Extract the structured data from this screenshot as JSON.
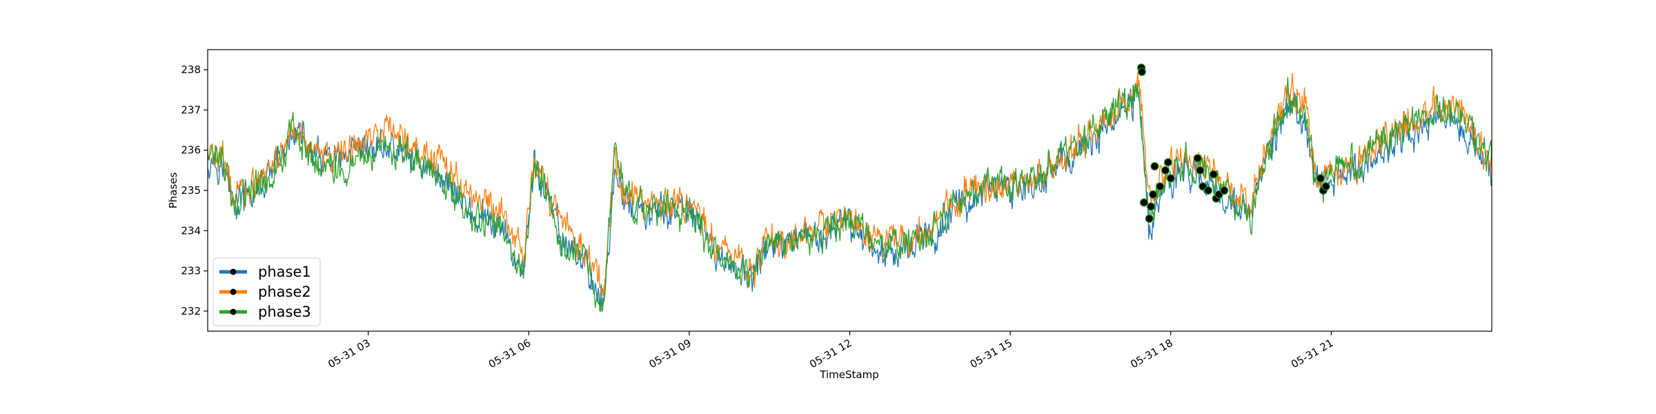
{
  "chart_data": {
    "type": "line",
    "title": "",
    "xlabel": "TimeStamp",
    "ylabel": "Phases",
    "ylim": [
      231.5,
      238.5
    ],
    "xlim": [
      "2018-05-31 00:00",
      "2018-05-31 24:00"
    ],
    "x_ticks": [
      "05-31 03",
      "05-31 06",
      "05-31 09",
      "05-31 12",
      "05-31 15",
      "05-31 18",
      "05-31 21"
    ],
    "x_tick_hours": [
      3,
      6,
      9,
      12,
      15,
      18,
      21
    ],
    "y_ticks": [
      232,
      233,
      234,
      235,
      236,
      237,
      238
    ],
    "legend": {
      "position": "lower-left"
    },
    "grid": false,
    "series": [
      {
        "name": "phase1",
        "color": "#1f77b4",
        "hours": [
          0.0,
          0.25,
          0.5,
          1.0,
          1.5,
          1.6,
          2.0,
          2.5,
          3.0,
          3.3,
          3.7,
          4.0,
          4.5,
          5.0,
          5.5,
          5.9,
          6.1,
          6.3,
          6.6,
          7.0,
          7.4,
          7.6,
          7.8,
          8.2,
          8.6,
          9.0,
          9.5,
          10.0,
          10.2,
          10.5,
          10.8,
          11.2,
          11.6,
          12.0,
          12.5,
          13.0,
          13.5,
          14.0,
          14.5,
          15.0,
          15.5,
          16.0,
          16.5,
          17.0,
          17.4,
          17.6,
          17.8,
          18.0,
          18.3,
          18.6,
          18.9,
          19.2,
          19.5,
          19.8,
          20.2,
          20.5,
          20.7,
          21.0,
          21.5,
          22.0,
          22.5,
          23.0,
          23.5,
          24.0
        ],
        "values": [
          235.8,
          235.7,
          234.7,
          235.0,
          236.0,
          236.6,
          235.8,
          235.7,
          236.0,
          236.1,
          235.9,
          235.7,
          235.2,
          234.3,
          234.0,
          233.0,
          235.6,
          235.0,
          233.8,
          233.3,
          232.2,
          235.3,
          234.8,
          234.3,
          234.5,
          234.5,
          233.4,
          233.0,
          232.8,
          233.8,
          233.5,
          233.8,
          233.9,
          234.2,
          233.5,
          233.6,
          233.8,
          234.6,
          235.0,
          235.0,
          235.2,
          235.7,
          236.2,
          236.8,
          237.5,
          234.0,
          235.0,
          235.3,
          235.5,
          235.3,
          235.0,
          234.6,
          234.4,
          235.8,
          237.1,
          236.7,
          235.2,
          235.3,
          235.5,
          236.0,
          236.4,
          236.9,
          236.6,
          235.3
        ]
      },
      {
        "name": "phase2",
        "color": "#ff7f0e",
        "hours": [
          0.0,
          0.25,
          0.5,
          1.0,
          1.5,
          1.6,
          2.0,
          2.5,
          3.0,
          3.3,
          3.7,
          4.0,
          4.5,
          5.0,
          5.5,
          5.9,
          6.1,
          6.3,
          6.6,
          7.0,
          7.4,
          7.6,
          7.8,
          8.2,
          8.6,
          9.0,
          9.5,
          10.0,
          10.2,
          10.5,
          10.8,
          11.2,
          11.6,
          12.0,
          12.5,
          13.0,
          13.5,
          14.0,
          14.5,
          15.0,
          15.5,
          16.0,
          16.5,
          17.0,
          17.4,
          17.6,
          17.8,
          18.0,
          18.3,
          18.6,
          18.9,
          19.2,
          19.5,
          19.8,
          20.2,
          20.5,
          20.7,
          21.0,
          21.5,
          22.0,
          22.5,
          23.0,
          23.5,
          24.0
        ],
        "values": [
          235.9,
          235.8,
          234.9,
          235.2,
          236.2,
          236.7,
          235.9,
          235.9,
          236.3,
          236.5,
          236.3,
          236.0,
          235.5,
          234.7,
          234.4,
          233.4,
          235.9,
          235.2,
          234.1,
          233.6,
          232.5,
          235.8,
          235.0,
          234.6,
          234.7,
          234.7,
          233.7,
          233.2,
          233.0,
          234.0,
          233.7,
          234.0,
          234.1,
          234.4,
          233.8,
          233.8,
          234.0,
          234.8,
          235.1,
          235.1,
          235.4,
          235.8,
          236.4,
          237.0,
          237.6,
          234.6,
          235.3,
          235.6,
          235.8,
          235.6,
          235.3,
          234.9,
          234.7,
          236.1,
          237.5,
          237.2,
          235.4,
          235.5,
          235.8,
          236.3,
          236.7,
          237.2,
          236.9,
          235.6
        ]
      },
      {
        "name": "phase3",
        "color": "#2ca02c",
        "hours": [
          0.0,
          0.25,
          0.5,
          1.0,
          1.5,
          1.6,
          2.0,
          2.5,
          3.0,
          3.3,
          3.7,
          4.0,
          4.5,
          5.0,
          5.5,
          5.9,
          6.1,
          6.3,
          6.6,
          7.0,
          7.4,
          7.6,
          7.8,
          8.2,
          8.6,
          9.0,
          9.5,
          10.0,
          10.2,
          10.5,
          10.8,
          11.2,
          11.6,
          12.0,
          12.5,
          13.0,
          13.5,
          14.0,
          14.5,
          15.0,
          15.5,
          16.0,
          16.5,
          17.0,
          17.4,
          17.6,
          17.8,
          18.0,
          18.3,
          18.6,
          18.9,
          19.2,
          19.5,
          19.8,
          20.2,
          20.5,
          20.7,
          21.0,
          21.5,
          22.0,
          22.5,
          23.0,
          23.5,
          24.0
        ],
        "values": [
          235.8,
          235.8,
          234.8,
          235.1,
          236.0,
          236.7,
          235.7,
          235.6,
          235.9,
          236.0,
          235.8,
          235.6,
          235.1,
          234.4,
          234.1,
          232.8,
          235.8,
          235.1,
          233.7,
          233.4,
          232.0,
          236.1,
          234.9,
          234.4,
          234.6,
          234.6,
          233.5,
          233.1,
          232.9,
          233.9,
          233.6,
          233.9,
          234.0,
          234.3,
          233.6,
          233.7,
          233.9,
          234.7,
          235.2,
          235.1,
          235.3,
          235.9,
          236.3,
          237.1,
          237.4,
          234.3,
          235.2,
          235.5,
          235.7,
          235.5,
          235.2,
          234.6,
          234.5,
          236.0,
          237.4,
          237.1,
          235.3,
          235.4,
          235.7,
          236.2,
          236.7,
          237.1,
          236.9,
          235.7
        ]
      }
    ],
    "markers": {
      "hours": [
        17.45,
        17.46,
        17.5,
        17.6,
        17.63,
        17.67,
        17.7,
        17.8,
        17.9,
        17.95,
        18.0,
        18.5,
        18.55,
        18.6,
        18.7,
        18.8,
        18.85,
        18.9,
        19.0,
        20.8,
        20.85,
        20.9
      ],
      "values": [
        238.05,
        237.95,
        234.7,
        234.3,
        234.6,
        234.9,
        235.6,
        235.1,
        235.5,
        235.7,
        235.3,
        235.8,
        235.5,
        235.1,
        235.0,
        235.4,
        234.8,
        234.9,
        235.0,
        235.3,
        235.0,
        235.1
      ]
    }
  }
}
